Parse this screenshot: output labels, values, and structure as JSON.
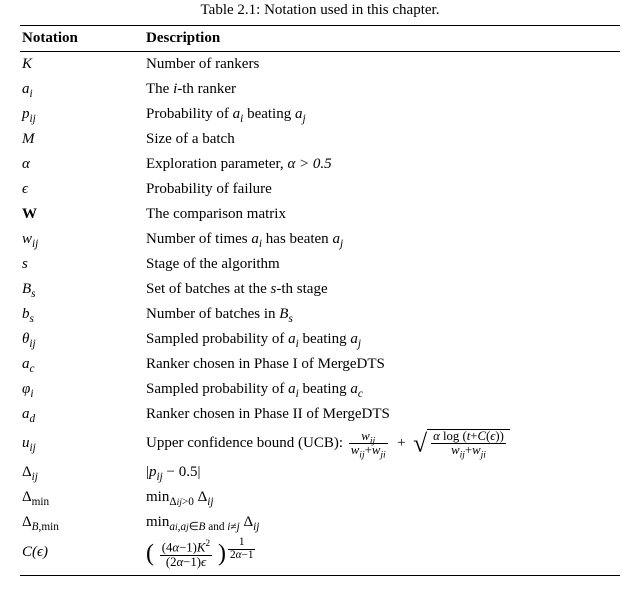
{
  "caption": "Table 2.1: Notation used in this chapter.",
  "columns": {
    "sym": "Notation",
    "desc": "Description"
  },
  "rows": {
    "K": {
      "sym": "K",
      "desc": "Number of rankers"
    },
    "ai": {
      "sym_html": "a<sub>i</sub>",
      "desc_pre": "The ",
      "desc_mid_html": "i",
      "desc_post": "-th ranker"
    },
    "pij": {
      "sym_html": "p<sub>ij</sub>",
      "desc_pre": "Probability of ",
      "a_i": "a",
      "a_i_sub": "i",
      "beat": " beating ",
      "a_j": "a",
      "a_j_sub": "j"
    },
    "M": {
      "sym": "M",
      "desc": "Size of a batch"
    },
    "alpha": {
      "sym": "α",
      "desc_pre": "Exploration parameter, ",
      "cond": "α > 0.5"
    },
    "eps": {
      "sym": "ϵ",
      "desc": "Probability of failure"
    },
    "W": {
      "sym": "W",
      "desc": "The comparison matrix"
    },
    "wij": {
      "sym_html": "w<sub>ij</sub>",
      "desc_pre": "Number of times ",
      "desc_post": " has beaten "
    },
    "s": {
      "sym": "s",
      "desc": "Stage of the algorithm"
    },
    "Bs": {
      "desc_pre": "Set of batches at the ",
      "desc_mid": "s",
      "desc_post": "-th stage"
    },
    "bs": {
      "desc": "Number of batches in "
    },
    "theta": {
      "desc_pre": "Sampled probability of ",
      "beat": " beating "
    },
    "ac": {
      "desc": "Ranker chosen in Phase I of MergeDTS"
    },
    "phi": {
      "desc_pre": "Sampled probability of ",
      "beat": " beating "
    },
    "ad": {
      "desc": "Ranker chosen in Phase II of MergeDTS"
    },
    "uij": {
      "label": "Upper confidence bound (UCB): ",
      "num1": "w",
      "num1s": "ij",
      "den1a": "w",
      "den1as": "ij",
      "den1b": "w",
      "den1bs": "ji",
      "num2a": "α log (t+C(ϵ))",
      "den2a": "w",
      "den2as": "ij",
      "den2b": "w",
      "den2bs": "ji"
    },
    "Dij": {
      "bar": "|",
      "p": "p",
      "minus": " − 0.5",
      "bar2": "|"
    },
    "Dmin": {
      "op": "min",
      "cond": "Δ",
      "cond_sub": "ij",
      "cond2": ">0",
      "tail": " Δ",
      "tail_sub": "ij"
    },
    "DBmin": {
      "op": "min",
      "cond": "a",
      "sub_i": "i",
      "comma": ",a",
      "sub_j": "j",
      "in": "∈B",
      "and": " and ",
      "neq": "i≠j",
      "tail": " Δ",
      "tail_sub": "ij"
    },
    "Ceps": {
      "num": "(4α−1)K",
      "exp": "2",
      "den": "(2α−1)ϵ",
      "outer_num": "1",
      "outer_den": "2α−1"
    }
  }
}
